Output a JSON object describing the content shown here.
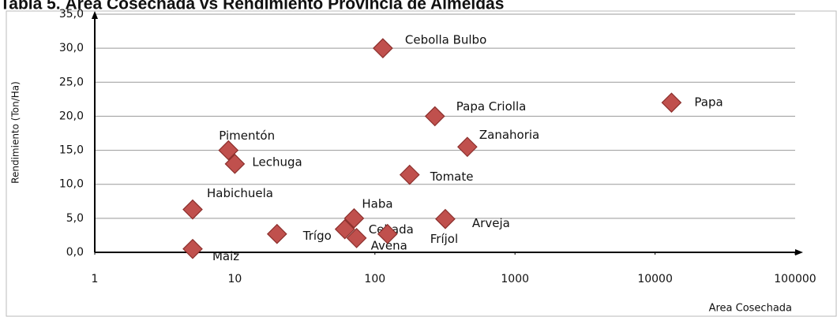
{
  "chart_data": {
    "type": "scatter",
    "title": "Tabla 5. Área Cosechada vs Rendimiento Provincia de Almeidas",
    "x_label": "Area Cosechada",
    "y_label": "Rendimiento (Ton/Ha)",
    "x_scale": "log",
    "grid": true,
    "color": "#c0504d",
    "categories": [
      "Cebolla Bulbo",
      "Papa",
      "Papa Criolla",
      "Zanahoria",
      "Pimentón",
      "Lechuga",
      "Tomate",
      "Habichuela",
      "Haba",
      "Arveja",
      "Cebada",
      "Trígo",
      "Avena",
      "Fríjol",
      "Maiz"
    ],
    "x": [
      114,
      13100,
      268,
      457,
      9,
      10,
      177,
      5,
      71,
      318,
      61,
      20,
      74,
      123,
      5
    ],
    "values": [
      30,
      22,
      20,
      15.5,
      15,
      13,
      11.4,
      6.3,
      5,
      4.9,
      3.4,
      2.7,
      2.1,
      2.7,
      0.5
    ],
    "xlim": [
      1,
      100000
    ],
    "xticks": [
      1,
      10,
      100,
      1000,
      10000,
      100000
    ],
    "ylim": [
      0,
      35
    ],
    "yticks": [
      {
        "value": 0,
        "label": "0,0"
      },
      {
        "value": 5,
        "label": "5,0"
      },
      {
        "value": 10,
        "label": "10,0"
      },
      {
        "value": 15,
        "label": "15,0"
      },
      {
        "value": 20,
        "label": "20,0"
      },
      {
        "value": 25,
        "label": "25,0"
      },
      {
        "value": 30,
        "label": "30,0"
      },
      {
        "value": 35,
        "label": "35,0"
      }
    ]
  }
}
